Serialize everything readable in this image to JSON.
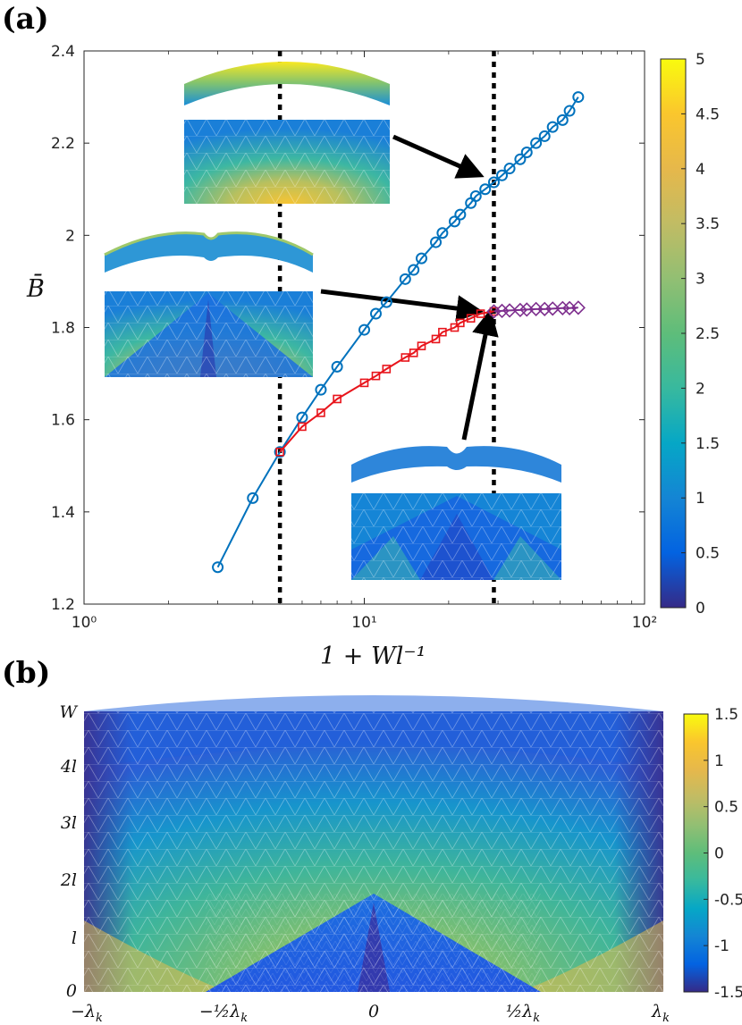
{
  "chart_data": [
    {
      "panel": "(a)",
      "type": "line",
      "xscale": "log",
      "xlabel": "1 + Wl⁻¹",
      "ylabel": "B̄",
      "xlim": [
        1,
        100
      ],
      "ylim": [
        1.2,
        2.4
      ],
      "x_tick_labels": [
        "10⁰",
        "10¹",
        "10²"
      ],
      "y_tick_labels": [
        "1.2",
        "1.4",
        "1.6",
        "1.8",
        "2",
        "2.2",
        "2.4"
      ],
      "y_ticks": [
        1.2,
        1.4,
        1.6,
        1.8,
        2.0,
        2.2,
        2.4
      ],
      "vertical_lines": [
        5,
        29
      ],
      "series": [
        {
          "name": "blue circles",
          "color": "#0072BD",
          "marker": "circle",
          "x": [
            3,
            4,
            5,
            6,
            7,
            8,
            10,
            11,
            12,
            14,
            15,
            16,
            18,
            19,
            21,
            22,
            24,
            25,
            27,
            29,
            31,
            33,
            36,
            38,
            41,
            44,
            47,
            51,
            54,
            58
          ],
          "y": [
            1.28,
            1.43,
            1.53,
            1.605,
            1.665,
            1.715,
            1.795,
            1.83,
            1.855,
            1.905,
            1.925,
            1.95,
            1.985,
            2.005,
            2.03,
            2.045,
            2.07,
            2.085,
            2.1,
            2.115,
            2.13,
            2.145,
            2.165,
            2.18,
            2.2,
            2.215,
            2.235,
            2.25,
            2.27,
            2.3
          ]
        },
        {
          "name": "red squares",
          "color": "#E8141B",
          "marker": "square",
          "x": [
            5,
            6,
            7,
            8,
            10,
            11,
            12,
            14,
            15,
            16,
            18,
            19,
            21,
            22,
            24,
            26,
            29
          ],
          "y": [
            1.53,
            1.585,
            1.615,
            1.645,
            1.68,
            1.695,
            1.71,
            1.735,
            1.745,
            1.76,
            1.775,
            1.79,
            1.8,
            1.81,
            1.82,
            1.83,
            1.835
          ]
        },
        {
          "name": "purple diamonds",
          "color": "#7E2F8E",
          "marker": "diamond",
          "x": [
            29,
            31,
            33,
            36,
            38,
            41,
            44,
            47,
            51,
            54,
            58
          ],
          "y": [
            1.835,
            1.836,
            1.837,
            1.838,
            1.839,
            1.84,
            1.84,
            1.841,
            1.842,
            1.842,
            1.843
          ]
        }
      ],
      "colorbar": {
        "min": 0,
        "max": 5,
        "tick_labels": [
          "0",
          "0.5",
          "1",
          "1.5",
          "2",
          "2.5",
          "3",
          "3.5",
          "4",
          "4.5",
          "5"
        ]
      },
      "insets": [
        "smooth buckled shell",
        "single-ridge shell",
        "multi-ridge shell"
      ]
    },
    {
      "panel": "(b)",
      "type": "heatmap",
      "x_tick_labels": [
        "−λ",
        "−½λ",
        "0",
        "½λ",
        "λ"
      ],
      "x_tick_subscript": "k",
      "y_tick_labels": [
        "0",
        "l",
        "2l",
        "3l",
        "4l",
        "W"
      ],
      "colorbar": {
        "min": -1.5,
        "max": 1.5,
        "tick_labels": [
          "-1.5",
          "-1",
          "-0.5",
          "0",
          "0.5",
          "1",
          "1.5"
        ]
      }
    }
  ]
}
